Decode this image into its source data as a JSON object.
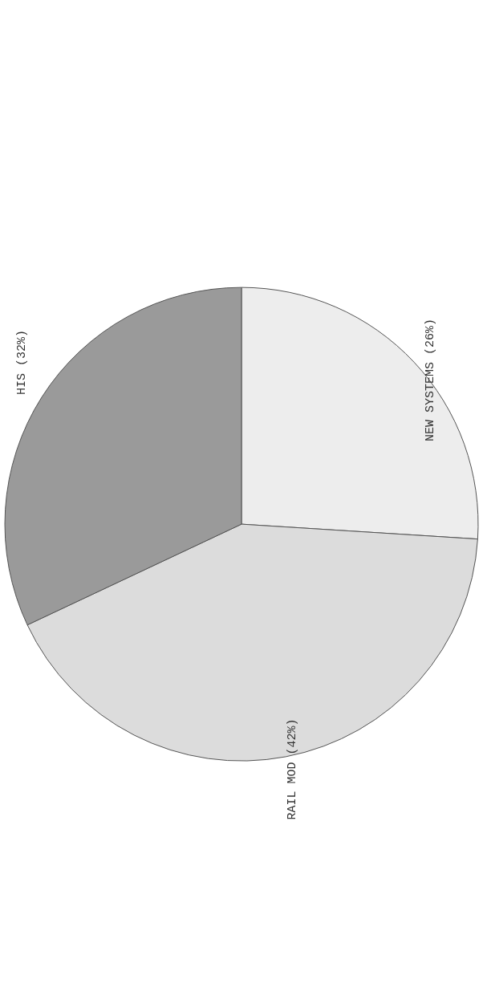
{
  "chart_data": {
    "type": "pie",
    "categories": [
      "NEW SYSTEMS (26%)",
      "RAIL MOD (42%)",
      "HIS (32%)"
    ],
    "values": [
      26,
      42,
      32
    ],
    "colors": [
      "#ededed",
      "#dcdcdc",
      "#9a9a9a"
    ]
  }
}
